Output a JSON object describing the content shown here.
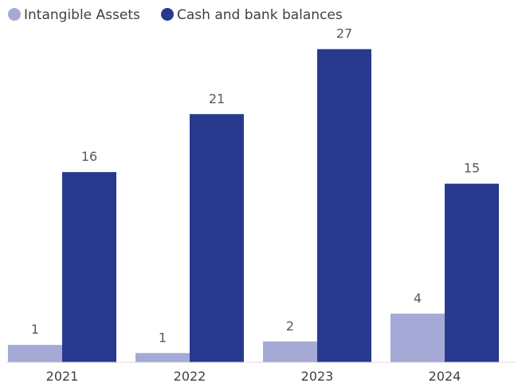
{
  "chart_data": {
    "type": "bar",
    "categories": [
      "2021",
      "2022",
      "2023",
      "2024"
    ],
    "series": [
      {
        "name": "Intangible Assets",
        "color": "#a5a9d6",
        "values": [
          1.5,
          0.8,
          1.8,
          4.2
        ],
        "labels": [
          "1",
          "1",
          "2",
          "4"
        ]
      },
      {
        "name": "Cash and bank balances",
        "color": "#283a8e",
        "values": [
          16.4,
          21.4,
          27.0,
          15.4
        ],
        "labels": [
          "16",
          "21",
          "27",
          "15"
        ]
      }
    ],
    "ylim": [
      0,
      30
    ],
    "grid": false,
    "legend_position": "top-left"
  }
}
